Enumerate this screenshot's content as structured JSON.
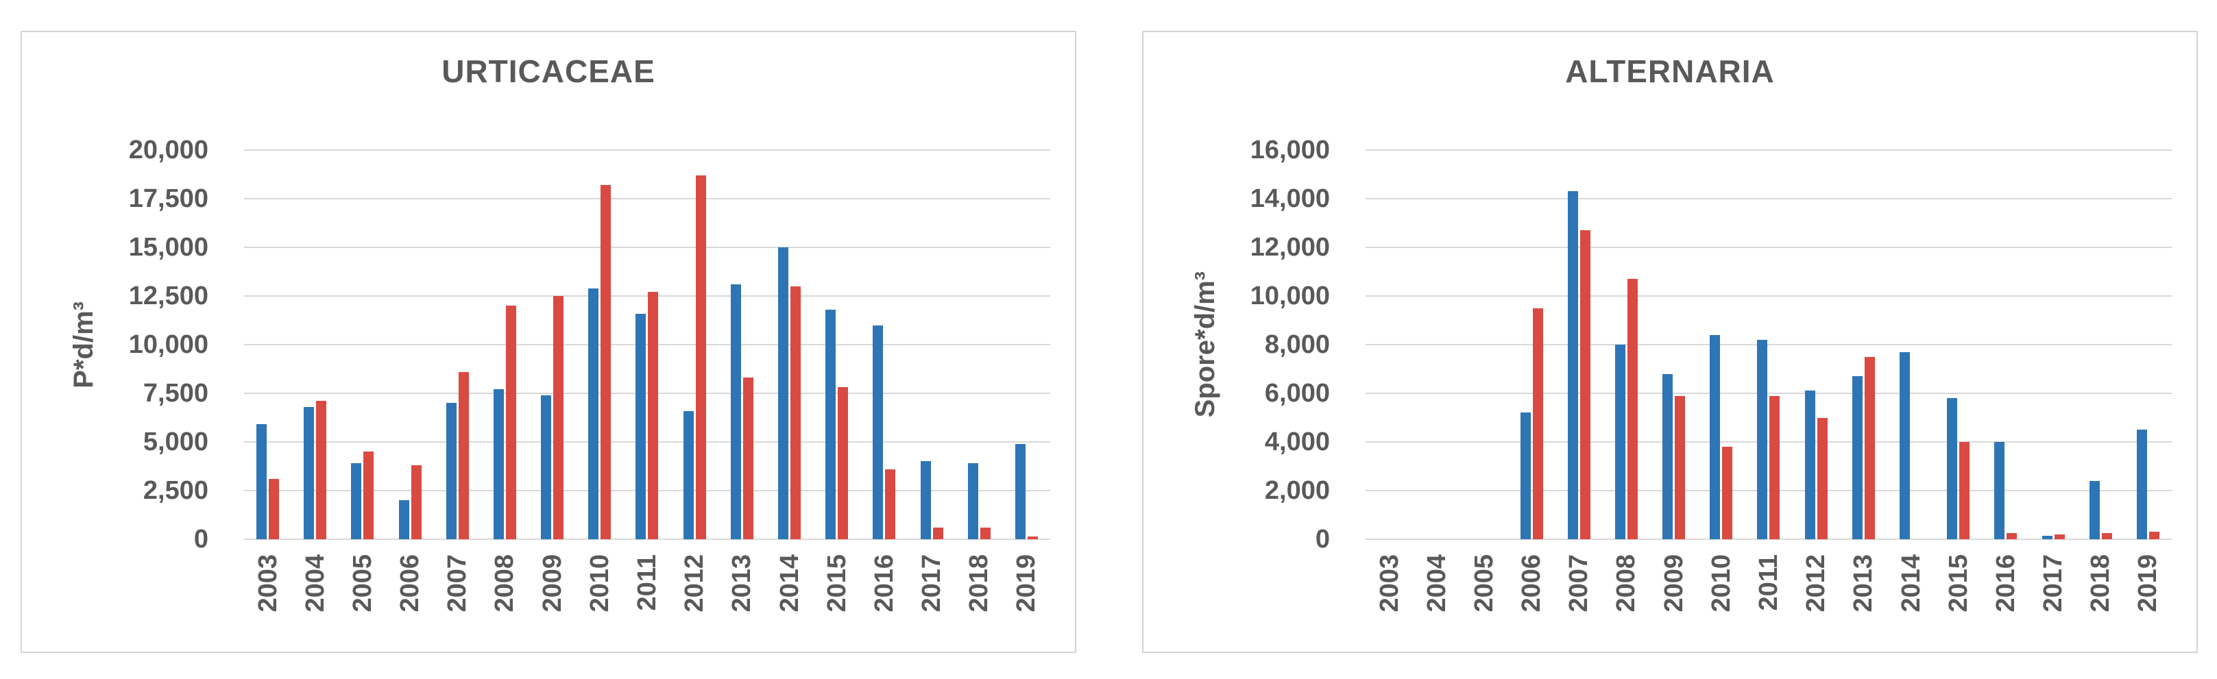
{
  "styles": {
    "series1_color": "#2E75B6",
    "series2_color": "#D94A42",
    "gridline_color": "#D9D9D9",
    "panel_border_color": "#D4D4D4",
    "text_color": "#595959",
    "page_background": "#FFFFFF"
  },
  "chart_data": [
    {
      "type": "bar",
      "title": "URTICACEAE",
      "ylabel": "P*d/m³",
      "xlabel": "",
      "ylim": [
        0,
        20000
      ],
      "ytick_step": 2500,
      "ytick_labels": [
        "0",
        "2,500",
        "5,000",
        "7,500",
        "10,000",
        "12,500",
        "15,000",
        "17,500",
        "20,000"
      ],
      "grid": true,
      "legend": false,
      "categories": [
        "2003",
        "2004",
        "2005",
        "2006",
        "2007",
        "2008",
        "2009",
        "2010",
        "2011",
        "2012",
        "2013",
        "2014",
        "2015",
        "2016",
        "2017",
        "2018",
        "2019"
      ],
      "series": [
        {
          "name": "blue",
          "color": "#2E75B6",
          "values": [
            5900,
            6800,
            3900,
            2000,
            7000,
            7700,
            7400,
            12900,
            11600,
            6600,
            13100,
            15000,
            11800,
            11000,
            4000,
            3900,
            4900
          ]
        },
        {
          "name": "red",
          "color": "#D94A42",
          "values": [
            3100,
            7100,
            4500,
            3800,
            8600,
            12000,
            12500,
            18200,
            12700,
            18700,
            8300,
            13000,
            7800,
            3600,
            600,
            600,
            150
          ]
        }
      ]
    },
    {
      "type": "bar",
      "title": "ALTERNARIA",
      "ylabel": "Spore*d/m³",
      "xlabel": "",
      "ylim": [
        0,
        16000
      ],
      "ytick_step": 2000,
      "ytick_labels": [
        "0",
        "2,000",
        "4,000",
        "6,000",
        "8,000",
        "10,000",
        "12,000",
        "14,000",
        "16,000"
      ],
      "grid": true,
      "legend": false,
      "categories": [
        "2003",
        "2004",
        "2005",
        "2006",
        "2007",
        "2008",
        "2009",
        "2010",
        "2011",
        "2012",
        "2013",
        "2014",
        "2015",
        "2016",
        "2017",
        "2018",
        "2019"
      ],
      "series": [
        {
          "name": "blue",
          "color": "#2E75B6",
          "values": [
            0,
            0,
            0,
            5200,
            14300,
            8000,
            6800,
            8400,
            8200,
            6100,
            6700,
            7700,
            5800,
            4000,
            150,
            2400,
            4500
          ]
        },
        {
          "name": "red",
          "color": "#D94A42",
          "values": [
            0,
            0,
            0,
            9500,
            12700,
            10700,
            5900,
            3800,
            5900,
            5000,
            7500,
            0,
            4000,
            250,
            200,
            250,
            300
          ]
        }
      ]
    }
  ]
}
